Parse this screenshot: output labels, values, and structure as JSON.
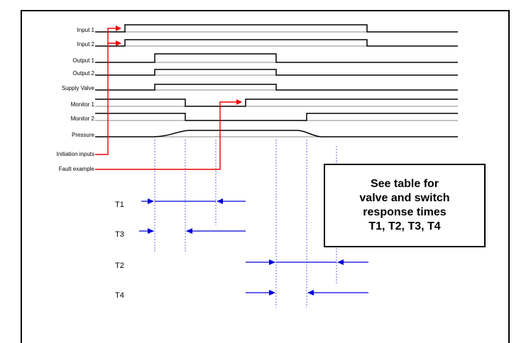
{
  "signals": [
    {
      "label": "Input 1"
    },
    {
      "label": "Input 2"
    },
    {
      "label": "Output 1"
    },
    {
      "label": "Output 2"
    },
    {
      "label": "Supply Valve"
    },
    {
      "label": "Monitor 1"
    },
    {
      "label": "Monitor 2"
    },
    {
      "label": "Pressure"
    }
  ],
  "annotations": {
    "initiation": "Initiation inputs",
    "fault": "Fault example"
  },
  "timings": [
    {
      "label": "T1"
    },
    {
      "label": "T3"
    },
    {
      "label": "T2"
    },
    {
      "label": "T4"
    }
  ],
  "note": {
    "line1": "See table for",
    "line2": "valve and switch",
    "line3": "response times",
    "line4": "T1, T2, T3, T4"
  },
  "colors": {
    "waveform": "#000000",
    "annotation_arrow": "#ee0000",
    "timing_arrow": "#0000dd",
    "guide_line": "#6b6bd6"
  }
}
